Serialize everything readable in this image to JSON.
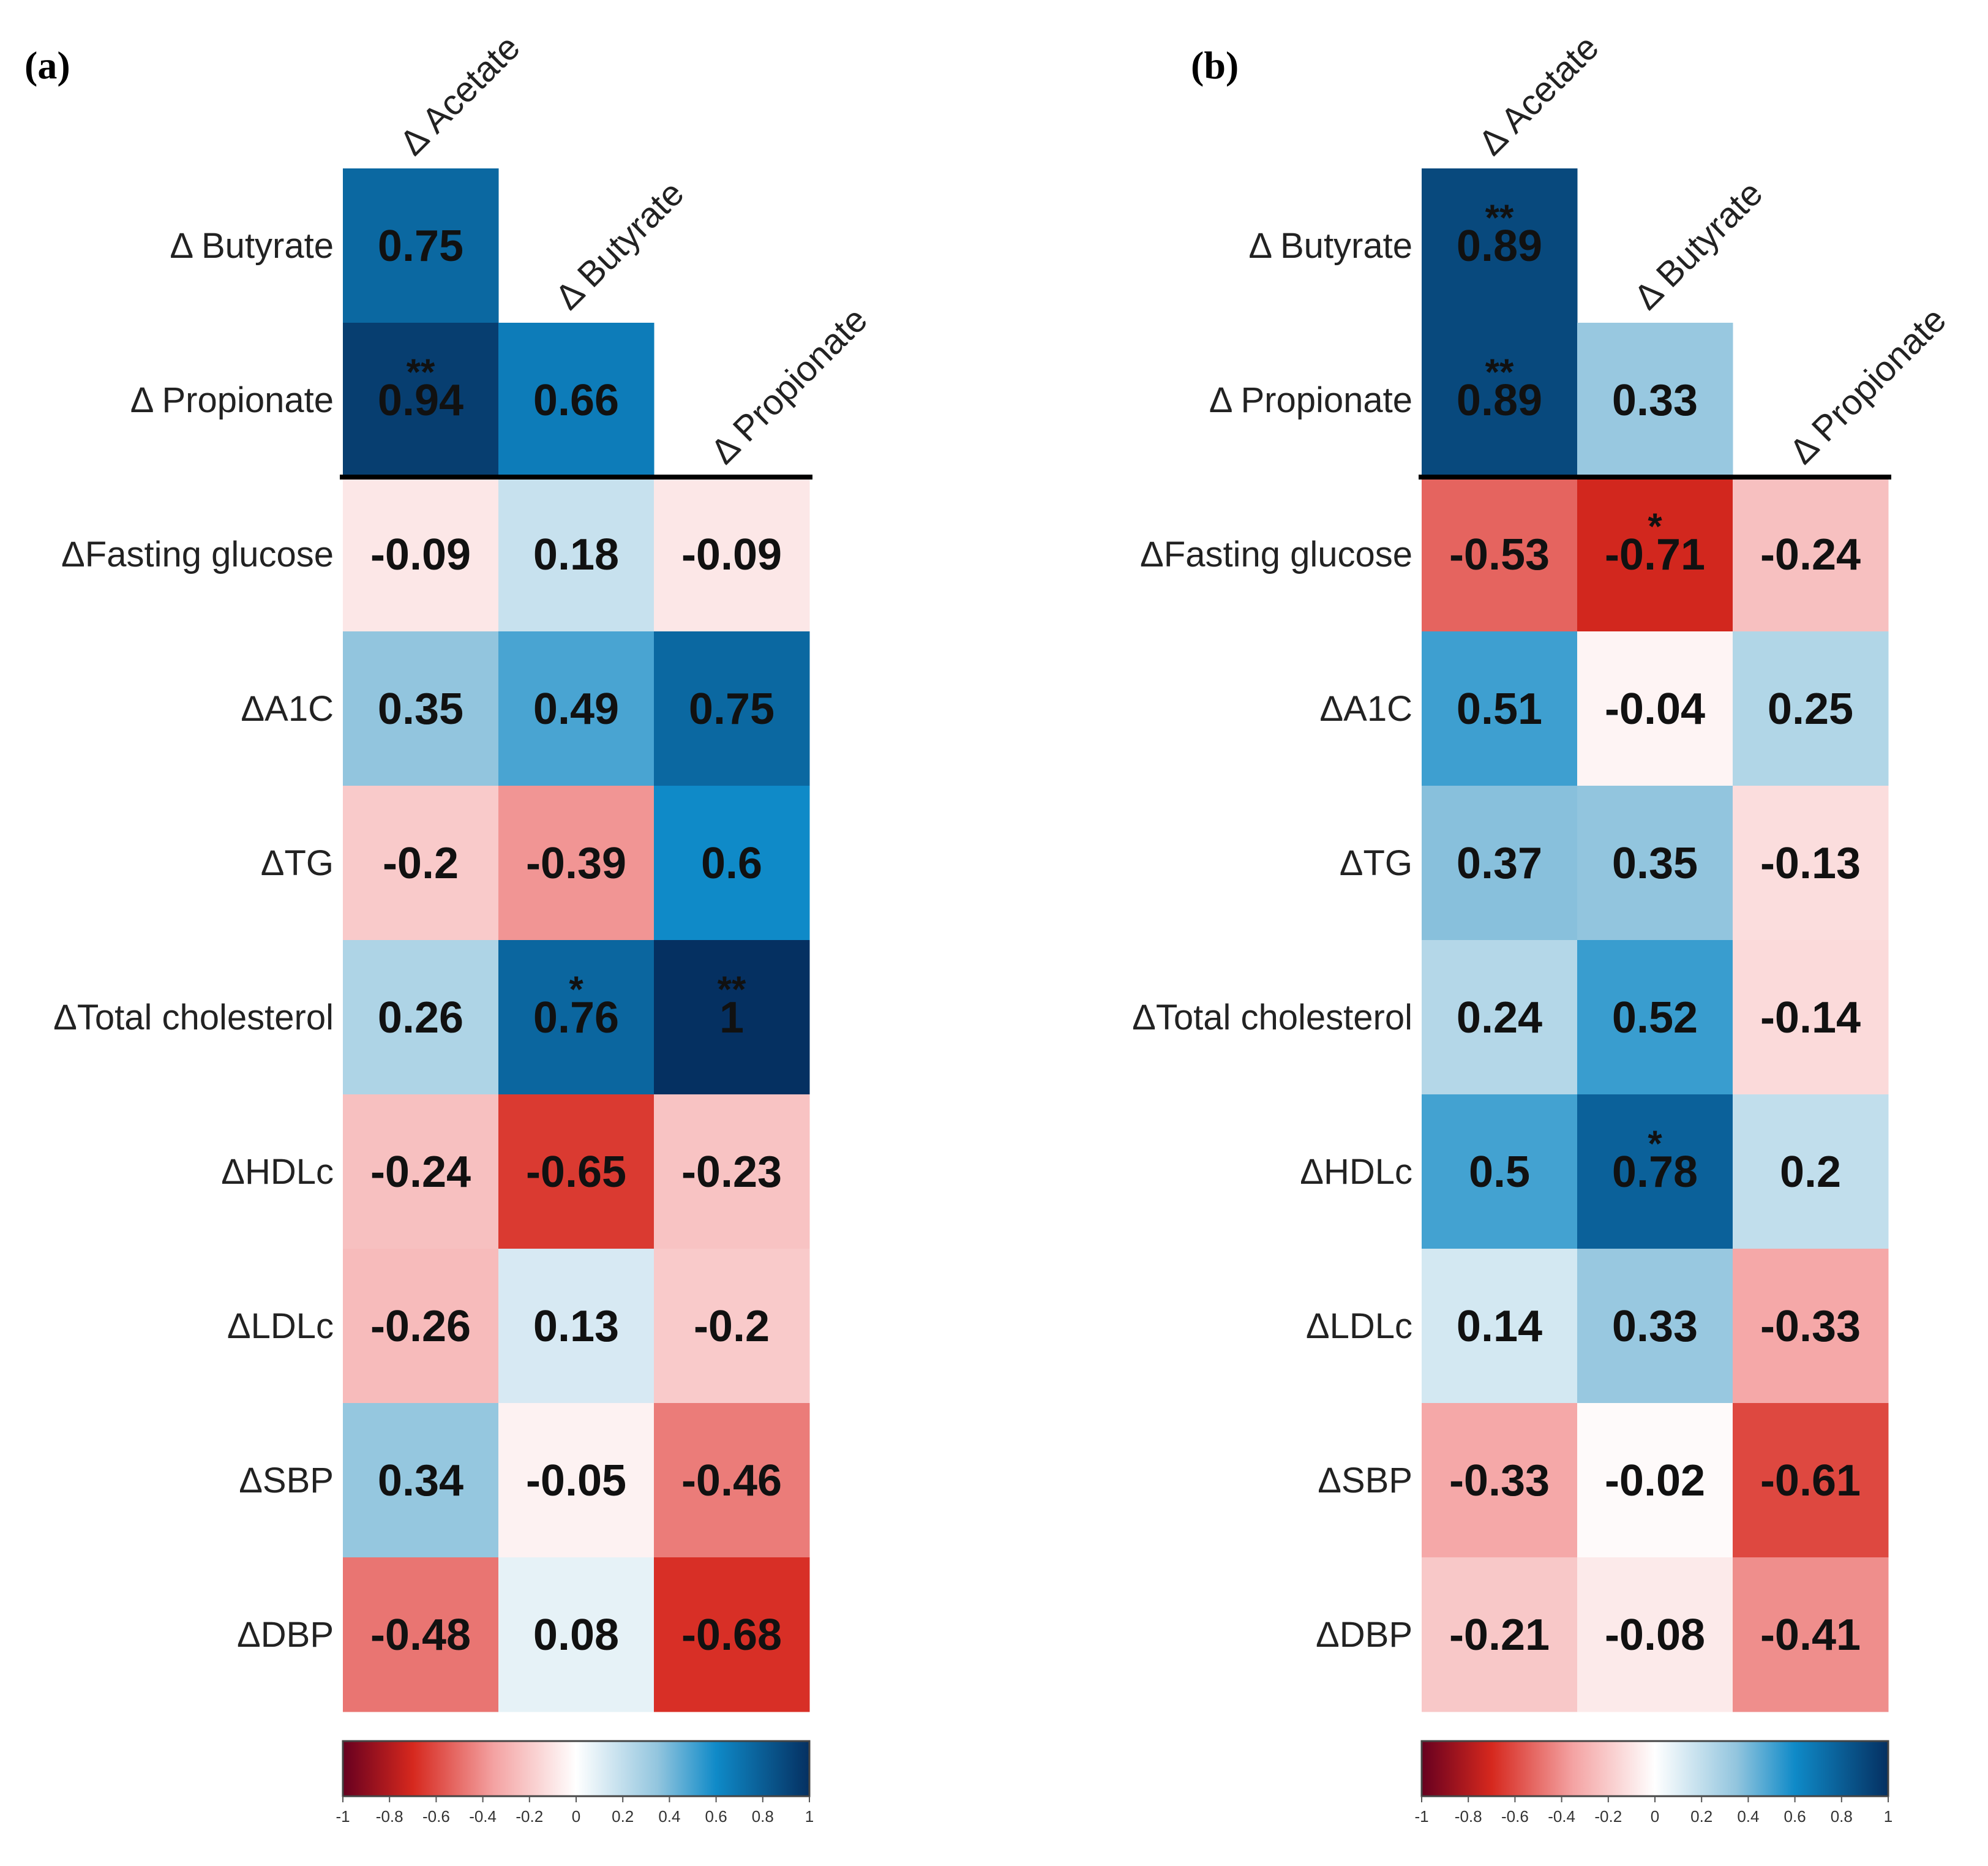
{
  "figure": {
    "panels": [
      "(a)",
      "(b)"
    ]
  },
  "chart_data": [
    {
      "type": "heatmap",
      "panel_label": "(a)",
      "column_labels": [
        "Δ Acetate",
        "Δ Butyrate",
        "Δ Propionate"
      ],
      "row_labels": [
        "Δ Butyrate",
        "Δ Propionate",
        "ΔFasting glucose",
        "ΔA1C",
        "ΔTG",
        "ΔTotal cholesterol",
        "ΔHDLc",
        "ΔLDLc",
        "ΔSBP",
        "ΔDBP"
      ],
      "values": [
        [
          0.75,
          null,
          null
        ],
        [
          0.94,
          0.66,
          null
        ],
        [
          -0.09,
          0.18,
          -0.09
        ],
        [
          0.35,
          0.49,
          0.75
        ],
        [
          -0.2,
          -0.39,
          0.6
        ],
        [
          0.26,
          0.76,
          1
        ],
        [
          -0.24,
          -0.65,
          -0.23
        ],
        [
          -0.26,
          0.13,
          -0.2
        ],
        [
          0.34,
          -0.05,
          -0.46
        ],
        [
          -0.48,
          0.08,
          -0.68
        ]
      ],
      "value_labels": [
        [
          "0.75",
          "",
          ""
        ],
        [
          "0.94",
          "0.66",
          ""
        ],
        [
          "-0.09",
          "0.18",
          "-0.09"
        ],
        [
          "0.35",
          "0.49",
          "0.75"
        ],
        [
          "-0.2",
          "-0.39",
          "0.6"
        ],
        [
          "0.26",
          "0.76",
          "1"
        ],
        [
          "-0.24",
          "-0.65",
          "-0.23"
        ],
        [
          "-0.26",
          "0.13",
          "-0.2"
        ],
        [
          "0.34",
          "-0.05",
          "-0.46"
        ],
        [
          "-0.48",
          "0.08",
          "-0.68"
        ]
      ],
      "significance": [
        [
          "",
          "",
          ""
        ],
        [
          "**",
          "",
          ""
        ],
        [
          "",
          "",
          ""
        ],
        [
          "",
          "",
          ""
        ],
        [
          "",
          "",
          ""
        ],
        [
          "",
          "*",
          "**"
        ],
        [
          "",
          "",
          ""
        ],
        [
          "",
          "",
          ""
        ],
        [
          "",
          "",
          ""
        ],
        [
          "",
          "",
          ""
        ]
      ],
      "color_scale": {
        "range": [
          -1,
          1
        ],
        "ticks": [
          "-1",
          "-0.8",
          "-0.6",
          "-0.4",
          "-0.2",
          "0",
          "0.2",
          "0.4",
          "0.6",
          "0.8",
          "1"
        ],
        "stops": [
          {
            "v": -1,
            "color": "#67001f"
          },
          {
            "v": -0.7,
            "color": "#d6281e"
          },
          {
            "v": -0.35,
            "color": "#f4a3a3"
          },
          {
            "v": 0,
            "color": "#ffffff"
          },
          {
            "v": 0.35,
            "color": "#92c5de"
          },
          {
            "v": 0.6,
            "color": "#0f8ac8"
          },
          {
            "v": 1,
            "color": "#053061"
          }
        ]
      }
    },
    {
      "type": "heatmap",
      "panel_label": "(b)",
      "column_labels": [
        "Δ Acetate",
        "Δ Butyrate",
        "Δ Propionate"
      ],
      "row_labels": [
        "Δ Butyrate",
        "Δ Propionate",
        "ΔFasting glucose",
        "ΔA1C",
        "ΔTG",
        "ΔTotal cholesterol",
        "ΔHDLc",
        "ΔLDLc",
        "ΔSBP",
        "ΔDBP"
      ],
      "values": [
        [
          0.89,
          null,
          null
        ],
        [
          0.89,
          0.33,
          null
        ],
        [
          -0.53,
          -0.71,
          -0.24
        ],
        [
          0.51,
          -0.04,
          0.25
        ],
        [
          0.37,
          0.35,
          -0.13
        ],
        [
          0.24,
          0.52,
          -0.14
        ],
        [
          0.5,
          0.78,
          0.2
        ],
        [
          0.14,
          0.33,
          -0.33
        ],
        [
          -0.33,
          -0.02,
          -0.61
        ],
        [
          -0.21,
          -0.08,
          -0.41
        ]
      ],
      "value_labels": [
        [
          "0.89",
          "",
          ""
        ],
        [
          "0.89",
          "0.33",
          ""
        ],
        [
          "-0.53",
          "-0.71",
          "-0.24"
        ],
        [
          "0.51",
          "-0.04",
          "0.25"
        ],
        [
          "0.37",
          "0.35",
          "-0.13"
        ],
        [
          "0.24",
          "0.52",
          "-0.14"
        ],
        [
          "0.5",
          "0.78",
          "0.2"
        ],
        [
          "0.14",
          "0.33",
          "-0.33"
        ],
        [
          "-0.33",
          "-0.02",
          "-0.61"
        ],
        [
          "-0.21",
          "-0.08",
          "-0.41"
        ]
      ],
      "significance": [
        [
          "**",
          "",
          ""
        ],
        [
          "**",
          "",
          ""
        ],
        [
          "",
          "*",
          ""
        ],
        [
          "",
          "",
          ""
        ],
        [
          "",
          "",
          ""
        ],
        [
          "",
          "",
          ""
        ],
        [
          "",
          "*",
          ""
        ],
        [
          "",
          "",
          ""
        ],
        [
          "",
          "",
          ""
        ],
        [
          "",
          "",
          ""
        ]
      ],
      "color_scale": {
        "range": [
          -1,
          1
        ],
        "ticks": [
          "-1",
          "-0.8",
          "-0.6",
          "-0.4",
          "-0.2",
          "0",
          "0.2",
          "0.4",
          "0.6",
          "0.8",
          "1"
        ],
        "stops": [
          {
            "v": -1,
            "color": "#67001f"
          },
          {
            "v": -0.7,
            "color": "#d6281e"
          },
          {
            "v": -0.35,
            "color": "#f4a3a3"
          },
          {
            "v": 0,
            "color": "#ffffff"
          },
          {
            "v": 0.35,
            "color": "#92c5de"
          },
          {
            "v": 0.6,
            "color": "#0f8ac8"
          },
          {
            "v": 1,
            "color": "#053061"
          }
        ]
      }
    }
  ]
}
